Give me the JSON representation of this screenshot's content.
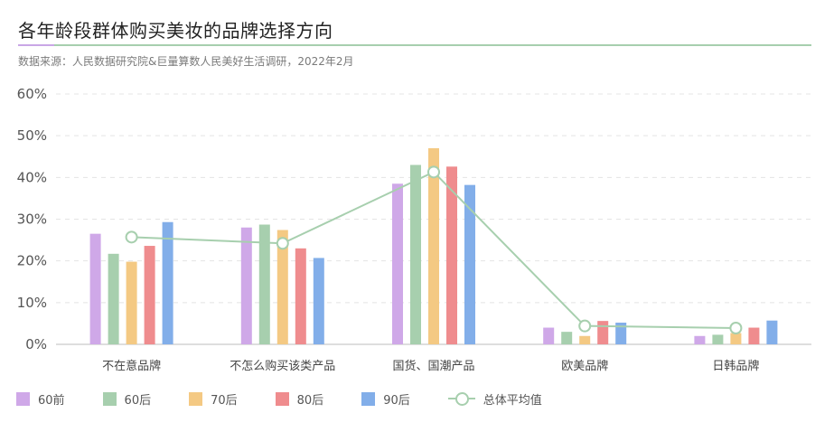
{
  "header": {
    "title": "各年龄段群体购买美妆的品牌选择方向",
    "subtitle": "数据来源：人民数据研究院&巨量算数人民美好生活调研，2022年2月"
  },
  "chart_data": {
    "type": "bar",
    "categories": [
      "不在意品牌",
      "不怎么购买该类产品",
      "国货、国潮产品",
      "欧美品牌",
      "日韩品牌"
    ],
    "series": [
      {
        "name": "60前",
        "values": [
          26.5,
          28.0,
          38.5,
          4.0,
          2.0
        ],
        "color": "#cfa8e8"
      },
      {
        "name": "60后",
        "values": [
          21.7,
          28.7,
          43.0,
          3.0,
          2.3
        ],
        "color": "#a7cfae"
      },
      {
        "name": "70后",
        "values": [
          19.8,
          27.4,
          47.0,
          2.0,
          2.7
        ],
        "color": "#f4c983"
      },
      {
        "name": "80后",
        "values": [
          23.6,
          23.0,
          42.6,
          5.6,
          4.0
        ],
        "color": "#ef8c8e"
      },
      {
        "name": "90后",
        "values": [
          29.3,
          20.7,
          38.2,
          5.2,
          5.7
        ],
        "color": "#82aee9"
      }
    ],
    "line_series": {
      "name": "总体平均值",
      "values": [
        25.7,
        24.2,
        41.3,
        4.4,
        3.9
      ],
      "color": "#a7cfae"
    },
    "y_ticks": [
      "0%",
      "10%",
      "20%",
      "30%",
      "40%",
      "50%",
      "60%"
    ],
    "ylim": [
      0,
      60
    ],
    "grid": true,
    "legend_position": "bottom-left"
  }
}
